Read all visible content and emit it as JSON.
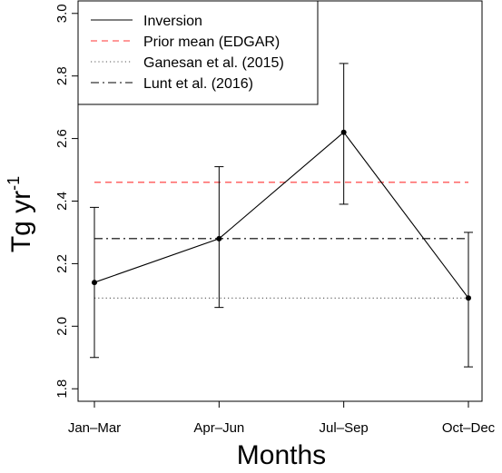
{
  "chart_data": {
    "type": "line",
    "xlabel": "Months",
    "ylabel": "Tg yr",
    "ylabel_superscript": "-1",
    "categories": [
      "Jan–Mar",
      "Apr–Jun",
      "Jul–Sep",
      "Oct–Dec"
    ],
    "ylim": [
      1.76,
      3.04
    ],
    "yticks": [
      "1.8",
      "2.0",
      "2.2",
      "2.4",
      "2.6",
      "2.8",
      "3.0"
    ],
    "grid": false,
    "legend_position": "top-left",
    "series": [
      {
        "name": "Inversion",
        "style": "solid",
        "color": "#000000",
        "values": [
          2.14,
          2.28,
          2.62,
          2.09
        ],
        "error_lower": [
          1.9,
          2.06,
          2.39,
          1.87
        ],
        "error_upper": [
          2.38,
          2.51,
          2.84,
          2.3
        ]
      },
      {
        "name": "Prior mean (EDGAR)",
        "style": "dashed",
        "color": "#ff3333",
        "constant": 2.46
      },
      {
        "name": "Ganesan et al. (2015)",
        "style": "dotted",
        "color": "#555555",
        "constant": 2.09
      },
      {
        "name": "Lunt et al. (2016)",
        "style": "dashdot",
        "color": "#000000",
        "constant": 2.28
      }
    ]
  }
}
